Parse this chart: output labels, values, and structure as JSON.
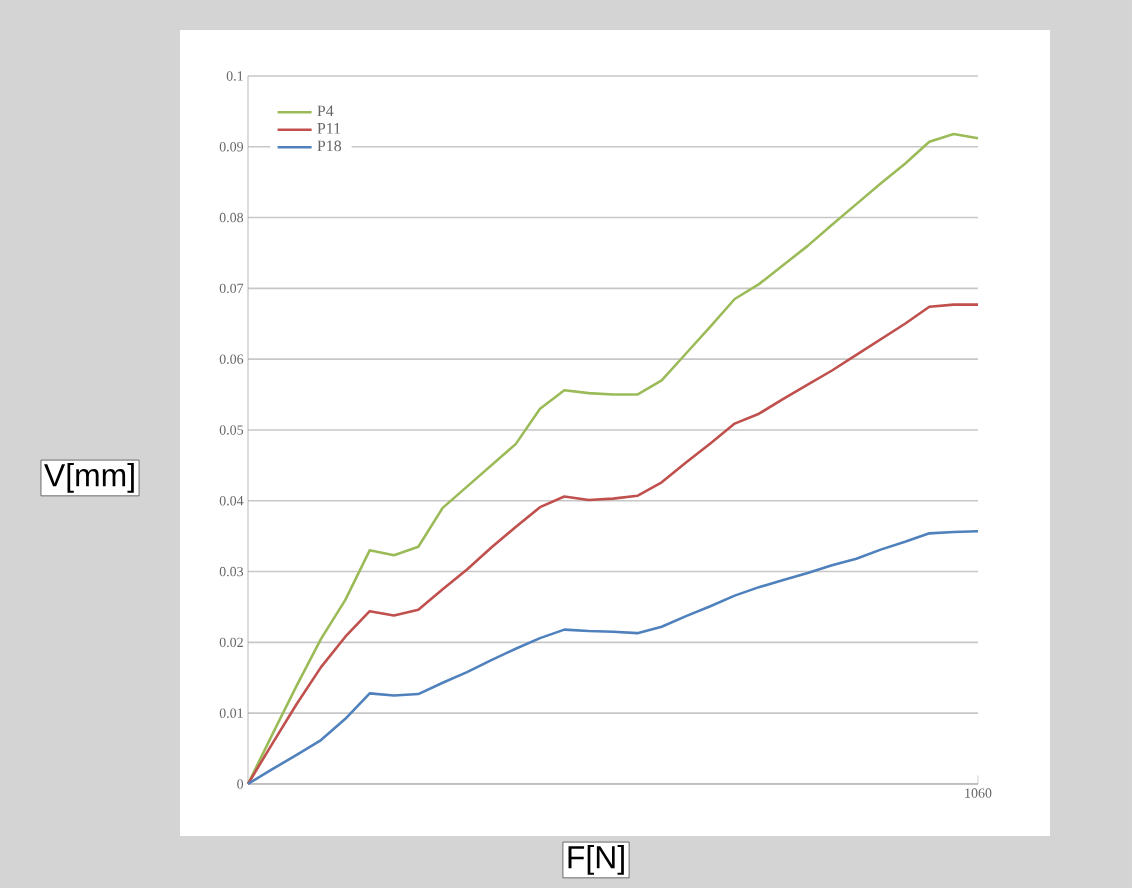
{
  "chart_data": {
    "type": "line",
    "xlabel": "F[N]",
    "ylabel": "V[mm]",
    "categories": [
      null,
      null,
      null,
      null,
      null,
      null,
      null,
      null,
      null,
      null,
      null,
      null,
      null,
      null,
      null,
      null,
      null,
      null,
      null,
      null,
      null,
      null,
      null,
      null,
      null,
      null,
      null,
      null,
      null,
      null,
      "1060"
    ],
    "ylim": [
      0,
      0.1
    ],
    "yticks": [
      0,
      0.01,
      0.02,
      0.03,
      0.04,
      0.05,
      0.06,
      0.07,
      0.08,
      0.09,
      0.1
    ],
    "grid": "y",
    "legend": "top left",
    "marker": "none",
    "line_style": "solid",
    "series": [
      {
        "name": "P4",
        "color": "#9bbb59",
        "values": [
          0,
          0.007,
          0.0139,
          0.0205,
          0.026,
          0.033,
          0.0323,
          0.0335,
          0.039,
          0.042,
          0.045,
          0.048,
          0.053,
          0.0556,
          0.0552,
          0.055,
          0.055,
          0.057,
          0.0608,
          0.0646,
          0.0685,
          0.0706,
          0.0733,
          0.076,
          0.079,
          0.0819,
          0.0848,
          0.0876,
          0.0907,
          0.0918,
          0.0912
        ]
      },
      {
        "name": "P11",
        "color": "#c0504d",
        "values": [
          0,
          0.0057,
          0.0113,
          0.0165,
          0.0208,
          0.0244,
          0.0238,
          0.0246,
          0.0275,
          0.0303,
          0.0334,
          0.0363,
          0.0391,
          0.0406,
          0.0401,
          0.0403,
          0.0407,
          0.0426,
          0.0454,
          0.0481,
          0.0509,
          0.0523,
          0.0544,
          0.0564,
          0.0584,
          0.0606,
          0.0628,
          0.065,
          0.0674,
          0.0677,
          0.0677
        ]
      },
      {
        "name": "P18",
        "color": "#4f81bd",
        "values": [
          0,
          0.0021,
          0.0041,
          0.0062,
          0.0092,
          0.0128,
          0.0125,
          0.0127,
          0.0143,
          0.0158,
          0.0175,
          0.0191,
          0.0206,
          0.0218,
          0.0216,
          0.0215,
          0.0213,
          0.0222,
          0.0237,
          0.0251,
          0.0266,
          0.0278,
          0.0288,
          0.0298,
          0.0309,
          0.0318,
          0.0331,
          0.0342,
          0.0354,
          0.0356,
          0.0357
        ]
      }
    ]
  }
}
